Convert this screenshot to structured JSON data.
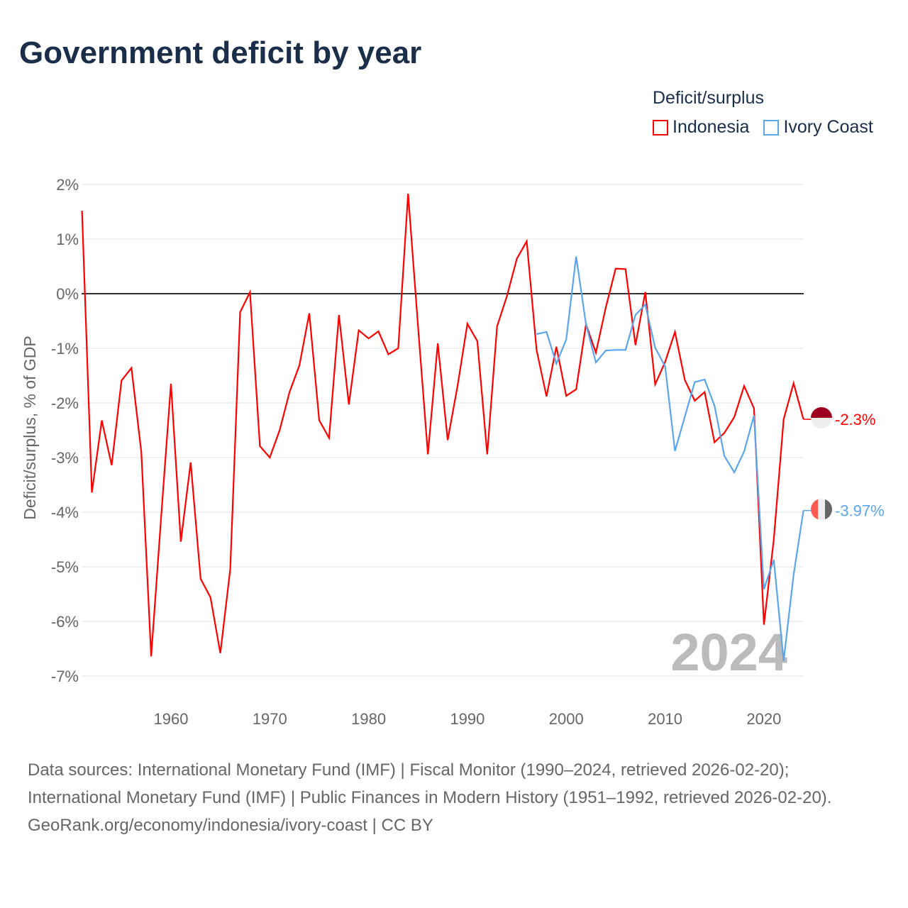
{
  "title": "Government deficit by year",
  "legend": {
    "title": "Deficit/surplus",
    "items": [
      {
        "label": "Indonesia",
        "color": "#ff0000"
      },
      {
        "label": "Ivory Coast",
        "color": "#5aa5ec"
      }
    ]
  },
  "watermark_year": "2024",
  "chart_data": {
    "type": "line",
    "title": "Government deficit by year",
    "xlabel": "",
    "ylabel": "Deficit/surplus, % of GDP",
    "xlim": [
      1951,
      2024
    ],
    "ylim": [
      -7,
      2
    ],
    "x_ticks": [
      1960,
      1970,
      1980,
      1990,
      2000,
      2010,
      2020
    ],
    "y_ticks": [
      2,
      1,
      0,
      -1,
      -2,
      -3,
      -4,
      -5,
      -6,
      -7
    ],
    "y_tick_labels": [
      "2%",
      "1%",
      "0%",
      "-1%",
      "-2%",
      "-3%",
      "-4%",
      "-5%",
      "-6%",
      "-7%"
    ],
    "grid": true,
    "legend_position": "top-right",
    "series": [
      {
        "name": "Indonesia",
        "color": "#ff0000",
        "end_label": "-2.3%",
        "x": [
          1951,
          1952,
          1953,
          1954,
          1955,
          1956,
          1957,
          1958,
          1959,
          1960,
          1961,
          1962,
          1963,
          1964,
          1965,
          1966,
          1967,
          1968,
          1969,
          1970,
          1971,
          1972,
          1973,
          1974,
          1975,
          1976,
          1977,
          1978,
          1979,
          1980,
          1981,
          1982,
          1983,
          1984,
          1985,
          1986,
          1987,
          1988,
          1989,
          1990,
          1991,
          1992,
          1993,
          1994,
          1995,
          1996,
          1997,
          1998,
          1999,
          2000,
          2001,
          2002,
          2003,
          2004,
          2005,
          2006,
          2007,
          2008,
          2009,
          2010,
          2011,
          2012,
          2013,
          2014,
          2015,
          2016,
          2017,
          2018,
          2019,
          2020,
          2021,
          2022,
          2023,
          2024
        ],
        "values": [
          1.52,
          -3.64,
          -2.32,
          -3.14,
          -1.59,
          -1.36,
          -2.9,
          -6.64,
          -4.1,
          -1.65,
          -4.54,
          -3.09,
          -5.22,
          -5.56,
          -6.58,
          -5.04,
          -0.34,
          0.03,
          -2.79,
          -3.0,
          -2.5,
          -1.8,
          -1.31,
          -0.36,
          -2.32,
          -2.64,
          -0.39,
          -2.03,
          -0.67,
          -0.82,
          -0.69,
          -1.11,
          -1.0,
          1.83,
          -0.6,
          -2.94,
          -0.91,
          -2.68,
          -1.69,
          -0.55,
          -0.87,
          -2.94,
          -0.6,
          -0.04,
          0.64,
          0.96,
          -1.03,
          -1.88,
          -0.97,
          -1.87,
          -1.75,
          -0.56,
          -1.08,
          -0.25,
          0.46,
          0.45,
          -0.94,
          0.03,
          -1.66,
          -1.25,
          -0.7,
          -1.58,
          -1.96,
          -1.8,
          -2.72,
          -2.55,
          -2.26,
          -1.69,
          -2.1,
          -6.06,
          -4.5,
          -2.3,
          -1.64,
          -2.3
        ]
      },
      {
        "name": "Ivory Coast",
        "color": "#5aa5ec",
        "end_label": "-3.97%",
        "x": [
          1997,
          1998,
          1999,
          2000,
          2001,
          2002,
          2003,
          2004,
          2005,
          2006,
          2007,
          2008,
          2009,
          2010,
          2011,
          2012,
          2013,
          2014,
          2015,
          2016,
          2017,
          2018,
          2019,
          2020,
          2021,
          2022,
          2023,
          2024
        ],
        "values": [
          -0.74,
          -0.7,
          -1.28,
          -0.84,
          0.68,
          -0.56,
          -1.26,
          -1.04,
          -1.03,
          -1.03,
          -0.39,
          -0.2,
          -0.99,
          -1.33,
          -2.88,
          -2.25,
          -1.62,
          -1.57,
          -2.05,
          -2.97,
          -3.27,
          -2.89,
          -2.23,
          -5.41,
          -4.87,
          -6.72,
          -5.15,
          -3.97
        ]
      }
    ]
  },
  "footer": {
    "sources": "Data sources: International Monetary Fund (IMF) | Fiscal Monitor (1990–2024, retrieved 2026-02-20); International Monetary Fund (IMF) | Public Finances in Modern History (1951–1992, retrieved 2026-02-20).",
    "credit": "GeoRank.org/economy/indonesia/ivory-coast | CC BY"
  }
}
